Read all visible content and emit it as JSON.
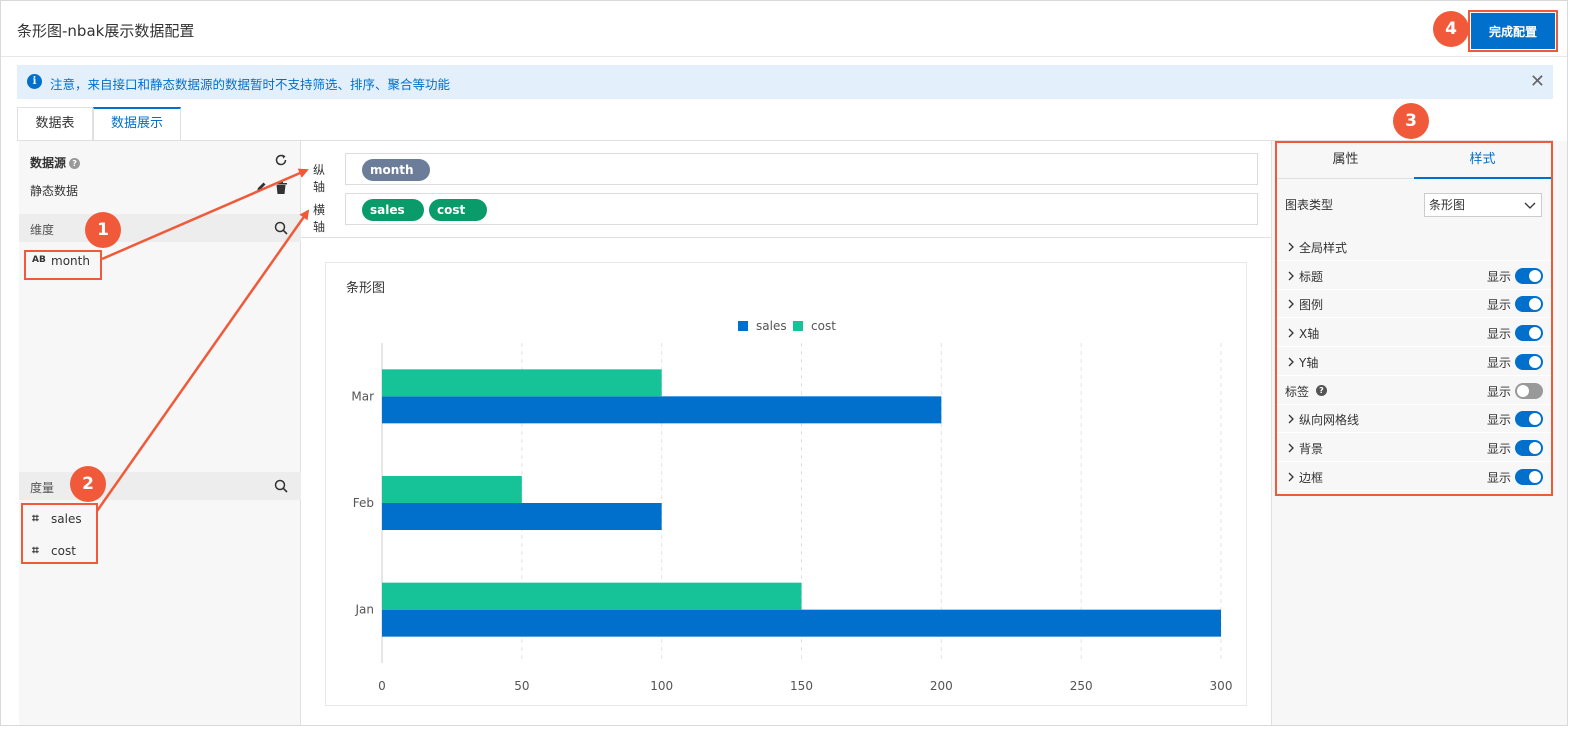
{
  "header": {
    "title": "条形图-nbak展示数据配置",
    "done_button": "完成配置"
  },
  "notice": {
    "text": "注意，来自接口和静态数据源的数据暂时不支持筛选、排序、聚合等功能",
    "icon": "info-icon",
    "close": "✕"
  },
  "tabs": [
    {
      "label": "数据表"
    },
    {
      "label": "数据展示"
    }
  ],
  "left_panel": {
    "datasource_label": "数据源",
    "datasource_name": "静态数据",
    "dimension_label": "维度",
    "measure_label": "度量",
    "dimensions": [
      {
        "type": "AB",
        "name": "month"
      }
    ],
    "measures": [
      {
        "type": "⌗",
        "name": "sales"
      },
      {
        "type": "⌗",
        "name": "cost"
      }
    ]
  },
  "axes": {
    "vertical": {
      "label": "纵轴",
      "pills": [
        {
          "name": "month",
          "color": "#6b7d99"
        }
      ]
    },
    "horizontal": {
      "label": "横轴",
      "pills": [
        {
          "name": "sales",
          "color": "#0a9b6a"
        },
        {
          "name": "cost",
          "color": "#0a9b6a"
        }
      ]
    }
  },
  "badges": [
    "1",
    "2",
    "3",
    "4"
  ],
  "chart_data": {
    "type": "bar",
    "orientation": "horizontal",
    "title": "条形图",
    "categories": [
      "Jan",
      "Feb",
      "Mar"
    ],
    "series": [
      {
        "name": "sales",
        "color": "#0070cc",
        "values": [
          300,
          100,
          200
        ]
      },
      {
        "name": "cost",
        "color": "#16c298",
        "values": [
          150,
          50,
          100
        ]
      }
    ],
    "xlim": [
      0,
      300
    ],
    "xticks": [
      0,
      50,
      100,
      150,
      200,
      250,
      300
    ],
    "legend": "top-center",
    "grid": "vertical-dashed"
  },
  "right_panel": {
    "tabs": [
      "属性",
      "样式"
    ],
    "chart_type_label": "图表类型",
    "chart_type_value": "条形图",
    "show_label": "显示",
    "rows": [
      {
        "label": "全局样式",
        "chevron": true,
        "toggle": null
      },
      {
        "label": "标题",
        "chevron": true,
        "toggle": true
      },
      {
        "label": "图例",
        "chevron": true,
        "toggle": true
      },
      {
        "label": "X轴",
        "chevron": true,
        "toggle": true
      },
      {
        "label": "Y轴",
        "chevron": true,
        "toggle": true
      },
      {
        "label": "标签",
        "chevron": false,
        "toggle": false,
        "help": true
      },
      {
        "label": "纵向网格线",
        "chevron": true,
        "toggle": true
      },
      {
        "label": "背景",
        "chevron": true,
        "toggle": true
      },
      {
        "label": "边框",
        "chevron": true,
        "toggle": true
      }
    ]
  }
}
